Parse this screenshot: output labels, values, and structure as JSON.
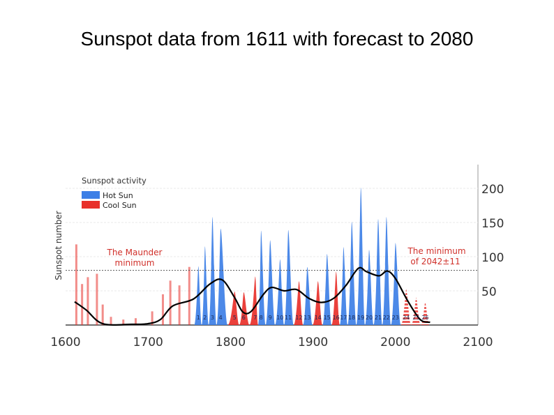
{
  "slide": {
    "title": "Sunspot data from 1611 with forecast to 2080"
  },
  "colors": {
    "hot": "#3d7fe6",
    "cool": "#e8302a",
    "forecast": "#e8302a",
    "curve": "#000000",
    "annotation": "#d0302a",
    "axis_text": "#333333"
  },
  "chart_data": {
    "type": "area",
    "ylabel": "Sunspot number",
    "xlim": [
      1600,
      2100
    ],
    "ylim": [
      0,
      230
    ],
    "x_ticks": [
      "1600",
      "1700",
      "1800",
      "1900",
      "2000",
      "2100"
    ],
    "y_ticks": [
      "50",
      "100",
      "150",
      "200"
    ],
    "reference_line_y": 80,
    "inner_label": "Sunspot activity",
    "legend": {
      "position": "top-left",
      "entries": [
        {
          "label": "Hot Sun",
          "color": "#3d7fe6"
        },
        {
          "label": "Cool Sun",
          "color": "#e8302a"
        }
      ]
    },
    "annotations": [
      {
        "id": "maunder",
        "lines": [
          "The Maunder",
          "minimum"
        ],
        "x": 1700,
        "y": 98
      },
      {
        "id": "forecast_min",
        "lines": [
          "The minimum",
          "of 2042±11"
        ],
        "x": 2067,
        "y": 98
      }
    ],
    "cycles": [
      {
        "num": "1",
        "year": 1761,
        "peak": 86,
        "type": "hot"
      },
      {
        "num": "2",
        "year": 1769,
        "peak": 115,
        "type": "hot"
      },
      {
        "num": "3",
        "year": 1778,
        "peak": 158,
        "type": "hot"
      },
      {
        "num": "4",
        "year": 1788,
        "peak": 141,
        "type": "hot"
      },
      {
        "num": "5",
        "year": 1805,
        "peak": 49,
        "type": "cool"
      },
      {
        "num": "6",
        "year": 1816,
        "peak": 48,
        "type": "cool"
      },
      {
        "num": "7",
        "year": 1830,
        "peak": 71,
        "type": "cool"
      },
      {
        "num": "8",
        "year": 1837,
        "peak": 138,
        "type": "hot"
      },
      {
        "num": "9",
        "year": 1848,
        "peak": 124,
        "type": "hot"
      },
      {
        "num": "10",
        "year": 1860,
        "peak": 96,
        "type": "hot"
      },
      {
        "num": "11",
        "year": 1870,
        "peak": 139,
        "type": "hot"
      },
      {
        "num": "12",
        "year": 1883,
        "peak": 64,
        "type": "cool"
      },
      {
        "num": "13",
        "year": 1893,
        "peak": 85,
        "type": "hot"
      },
      {
        "num": "14",
        "year": 1906,
        "peak": 64,
        "type": "cool"
      },
      {
        "num": "15",
        "year": 1917,
        "peak": 104,
        "type": "hot"
      },
      {
        "num": "16",
        "year": 1928,
        "peak": 78,
        "type": "cool"
      },
      {
        "num": "17",
        "year": 1937,
        "peak": 114,
        "type": "hot"
      },
      {
        "num": "18",
        "year": 1947,
        "peak": 151,
        "type": "hot"
      },
      {
        "num": "19",
        "year": 1958,
        "peak": 201,
        "type": "hot"
      },
      {
        "num": "20",
        "year": 1968,
        "peak": 110,
        "type": "hot"
      },
      {
        "num": "21",
        "year": 1979,
        "peak": 155,
        "type": "hot"
      },
      {
        "num": "22",
        "year": 1989,
        "peak": 158,
        "type": "hot"
      },
      {
        "num": "23",
        "year": 2000,
        "peak": 120,
        "type": "hot"
      },
      {
        "num": "24",
        "year": 2013,
        "peak": 52,
        "type": "forecast"
      },
      {
        "num": "25",
        "year": 2025,
        "peak": 40,
        "type": "forecast"
      },
      {
        "num": "26",
        "year": 2036,
        "peak": 33,
        "type": "forecast"
      }
    ],
    "maunder_spikes": [
      {
        "year": 1613,
        "value": 118
      },
      {
        "year": 1620,
        "value": 60
      },
      {
        "year": 1627,
        "value": 70
      },
      {
        "year": 1638,
        "value": 75
      },
      {
        "year": 1645,
        "value": 30
      },
      {
        "year": 1655,
        "value": 12
      },
      {
        "year": 1670,
        "value": 8
      },
      {
        "year": 1685,
        "value": 10
      },
      {
        "year": 1705,
        "value": 20
      },
      {
        "year": 1718,
        "value": 45
      },
      {
        "year": 1727,
        "value": 65
      },
      {
        "year": 1738,
        "value": 58
      },
      {
        "year": 1750,
        "value": 85
      }
    ],
    "trend": [
      {
        "x": 1611,
        "y": 34
      },
      {
        "x": 1625,
        "y": 22
      },
      {
        "x": 1645,
        "y": 2
      },
      {
        "x": 1680,
        "y": 1
      },
      {
        "x": 1700,
        "y": 2
      },
      {
        "x": 1715,
        "y": 8
      },
      {
        "x": 1730,
        "y": 28
      },
      {
        "x": 1755,
        "y": 38
      },
      {
        "x": 1775,
        "y": 60
      },
      {
        "x": 1790,
        "y": 66
      },
      {
        "x": 1805,
        "y": 40
      },
      {
        "x": 1815,
        "y": 19
      },
      {
        "x": 1825,
        "y": 20
      },
      {
        "x": 1840,
        "y": 45
      },
      {
        "x": 1850,
        "y": 55
      },
      {
        "x": 1865,
        "y": 50
      },
      {
        "x": 1880,
        "y": 52
      },
      {
        "x": 1895,
        "y": 39
      },
      {
        "x": 1910,
        "y": 33
      },
      {
        "x": 1925,
        "y": 39
      },
      {
        "x": 1940,
        "y": 58
      },
      {
        "x": 1955,
        "y": 83
      },
      {
        "x": 1965,
        "y": 78
      },
      {
        "x": 1980,
        "y": 72
      },
      {
        "x": 1990,
        "y": 79
      },
      {
        "x": 2000,
        "y": 68
      },
      {
        "x": 2015,
        "y": 35
      },
      {
        "x": 2030,
        "y": 8
      },
      {
        "x": 2042,
        "y": 4
      }
    ]
  }
}
